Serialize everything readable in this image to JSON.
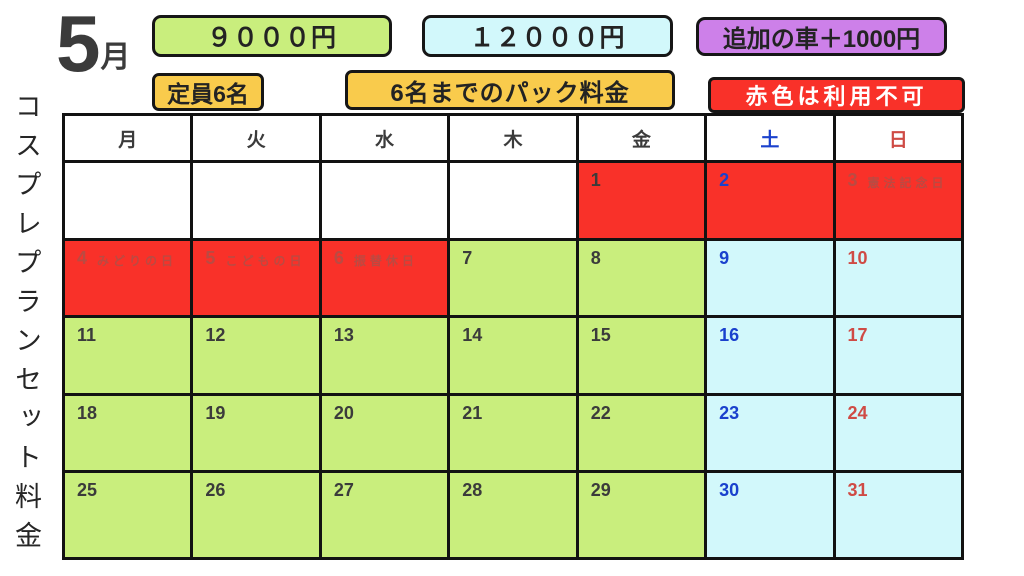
{
  "title": {
    "month_number": "5",
    "month_unit": "月"
  },
  "side_label": "コスプレプランセット料金",
  "legend": {
    "price_weekday": "９０００円",
    "price_weekend": "１２０００円",
    "extra_car": "追加の車＋1000円",
    "capacity": "定員6名",
    "pack_note": "6名までのパック料金",
    "unavailable_note": "赤色は利用不可"
  },
  "colors": {
    "green": "#c9ee7d",
    "cyan": "#d2f8fb",
    "red": "#f93129",
    "purple": "#cd80e9",
    "yellow": "#f9cb4c",
    "white": "#ffffff",
    "text_dark": "#3b3b3b",
    "saturday_blue": "#1a41cd",
    "sunday_red": "#cf4b45",
    "holiday_faded": "#bb4a42"
  },
  "calendar": {
    "weekday_headers": [
      {
        "label": "月",
        "color": "dark"
      },
      {
        "label": "火",
        "color": "dark"
      },
      {
        "label": "水",
        "color": "dark"
      },
      {
        "label": "木",
        "color": "dark"
      },
      {
        "label": "金",
        "color": "dark"
      },
      {
        "label": "土",
        "color": "sat"
      },
      {
        "label": "日",
        "color": "sun"
      }
    ],
    "rows": [
      [
        {
          "day": "",
          "bg": "white"
        },
        {
          "day": "",
          "bg": "white"
        },
        {
          "day": "",
          "bg": "white"
        },
        {
          "day": "",
          "bg": "white"
        },
        {
          "day": "1",
          "bg": "red",
          "num": "dark"
        },
        {
          "day": "2",
          "bg": "red",
          "num": "sat"
        },
        {
          "day": "3",
          "bg": "red",
          "num": "faded",
          "holiday": "憲法記念日"
        }
      ],
      [
        {
          "day": "4",
          "bg": "red",
          "num": "faded",
          "holiday": "みどりの日"
        },
        {
          "day": "5",
          "bg": "red",
          "num": "faded",
          "holiday": "こどもの日"
        },
        {
          "day": "6",
          "bg": "red",
          "num": "faded",
          "holiday": "振替休日"
        },
        {
          "day": "7",
          "bg": "green",
          "num": "dark"
        },
        {
          "day": "8",
          "bg": "green",
          "num": "dark"
        },
        {
          "day": "9",
          "bg": "cyan",
          "num": "sat"
        },
        {
          "day": "10",
          "bg": "cyan",
          "num": "sun"
        }
      ],
      [
        {
          "day": "11",
          "bg": "green",
          "num": "dark"
        },
        {
          "day": "12",
          "bg": "green",
          "num": "dark"
        },
        {
          "day": "13",
          "bg": "green",
          "num": "dark"
        },
        {
          "day": "14",
          "bg": "green",
          "num": "dark"
        },
        {
          "day": "15",
          "bg": "green",
          "num": "dark"
        },
        {
          "day": "16",
          "bg": "cyan",
          "num": "sat"
        },
        {
          "day": "17",
          "bg": "cyan",
          "num": "sun"
        }
      ],
      [
        {
          "day": "18",
          "bg": "green",
          "num": "dark"
        },
        {
          "day": "19",
          "bg": "green",
          "num": "dark"
        },
        {
          "day": "20",
          "bg": "green",
          "num": "dark"
        },
        {
          "day": "21",
          "bg": "green",
          "num": "dark"
        },
        {
          "day": "22",
          "bg": "green",
          "num": "dark"
        },
        {
          "day": "23",
          "bg": "cyan",
          "num": "sat"
        },
        {
          "day": "24",
          "bg": "cyan",
          "num": "sun"
        }
      ],
      [
        {
          "day": "25",
          "bg": "green",
          "num": "dark"
        },
        {
          "day": "26",
          "bg": "green",
          "num": "dark"
        },
        {
          "day": "27",
          "bg": "green",
          "num": "dark"
        },
        {
          "day": "28",
          "bg": "green",
          "num": "dark"
        },
        {
          "day": "29",
          "bg": "green",
          "num": "dark"
        },
        {
          "day": "30",
          "bg": "cyan",
          "num": "sat"
        },
        {
          "day": "31",
          "bg": "cyan",
          "num": "sun"
        }
      ]
    ]
  }
}
